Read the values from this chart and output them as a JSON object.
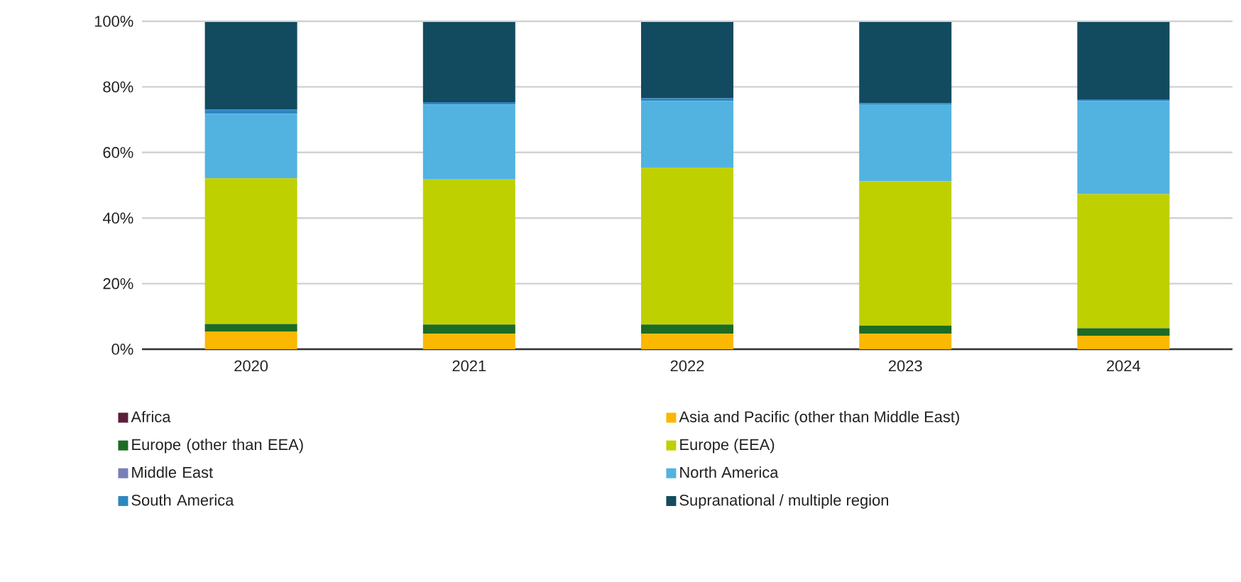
{
  "chart_data": {
    "type": "bar",
    "stacked": true,
    "categories": [
      "2020",
      "2021",
      "2022",
      "2023",
      "2024"
    ],
    "series": [
      {
        "name": "Africa",
        "color": "#5c1f3a",
        "values": [
          null,
          null,
          null,
          null,
          null
        ]
      },
      {
        "name": "Asia and Pacific (other than Middle East)",
        "color": "#fbb800",
        "values": [
          5.4,
          4.7,
          4.7,
          4.7,
          4.1
        ]
      },
      {
        "name": "Europe (other than EEA)",
        "color": "#1e6b23",
        "values": [
          2.3,
          2.8,
          2.8,
          2.5,
          2.3
        ]
      },
      {
        "name": "Europe (EEA)",
        "color": "#bfd000",
        "values": [
          44.4,
          44.3,
          47.9,
          44.0,
          40.9
        ]
      },
      {
        "name": "Middle East",
        "color": "#7a7fb8",
        "values": [
          null,
          null,
          null,
          null,
          null
        ]
      },
      {
        "name": "North America",
        "color": "#52b3e0",
        "values": [
          19.7,
          22.8,
          20.3,
          23.5,
          28.4
        ]
      },
      {
        "name": "South America",
        "color": "#2e86c1",
        "values": [
          1.3,
          0.7,
          0.8,
          0.3,
          0.5
        ]
      },
      {
        "name": "Supranational / multiple region",
        "color": "#124a5f",
        "values": [
          26.7,
          24.5,
          23.3,
          24.8,
          23.6
        ]
      }
    ],
    "ylim": [
      0,
      100
    ],
    "yticks": [
      {
        "value": 0,
        "label": "0%"
      },
      {
        "value": 20,
        "label": "20%"
      },
      {
        "value": 40,
        "label": "40%"
      },
      {
        "value": 60,
        "label": "60%"
      },
      {
        "value": 80,
        "label": "80%"
      },
      {
        "value": 100,
        "label": "100%"
      }
    ],
    "grid": "y",
    "legend": "bottom"
  }
}
